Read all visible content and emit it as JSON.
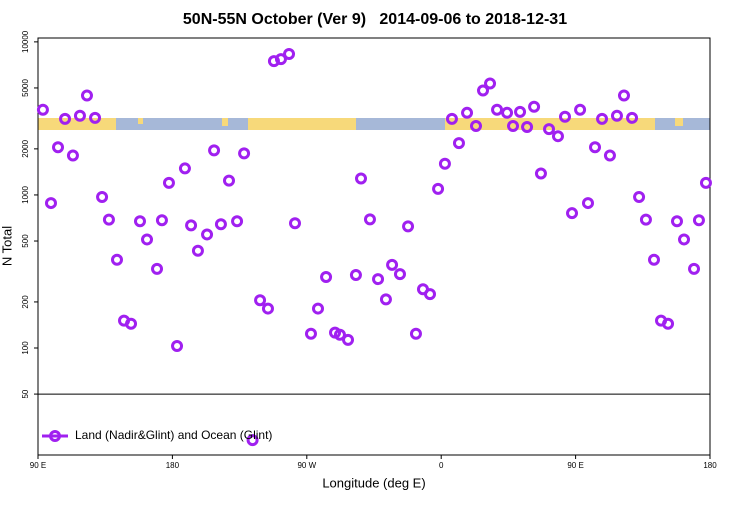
{
  "chart_data": {
    "type": "scatter",
    "title": "50N-55N October (Ver 9)   2014-09-06 to 2018-12-31",
    "x_label": "Longitude (deg E)",
    "y_label": "N Total",
    "log_y": true,
    "legend": "bottom-left",
    "xlim": [
      90,
      540
    ],
    "xticks": [
      {
        "value": 90,
        "label": "90 E"
      },
      180,
      {
        "value": 270,
        "label": "90 W"
      },
      {
        "value": 360,
        "label": "0"
      },
      {
        "value": 450,
        "label": "90 E"
      },
      {
        "value": 540,
        "label": "180"
      }
    ],
    "ylim": [
      20,
      10600
    ],
    "yticks": [
      50,
      100,
      200,
      500,
      1000,
      2000,
      5000,
      10000
    ],
    "series": [
      {
        "name": "Land (Nadir&Glint) and Ocean (Glint)",
        "color": "#a020f0",
        "x": [
          93.3,
          98.7,
          103.4,
          108.1,
          113.4,
          118.1,
          122.8,
          128.2,
          132.9,
          137.5,
          142.9,
          147.6,
          152.3,
          158.3,
          163.0,
          169.7,
          173.0,
          177.7,
          183.1,
          188.4,
          192.5,
          197.1,
          203.2,
          207.9,
          212.5,
          217.9,
          223.3,
          228.0,
          233.7,
          238.7,
          244.0,
          248.0,
          252.7,
          258.1,
          262.1,
          272.8,
          277.5,
          282.9,
          288.9,
          292.2,
          297.6,
          302.9,
          306.3,
          312.3,
          317.7,
          323.0,
          327.1,
          332.4,
          337.8,
          343.1,
          347.8,
          352.5,
          357.9,
          362.5,
          367.2,
          371.9,
          377.3,
          383.3,
          388.0,
          392.7,
          397.4,
          404.1,
          408.1,
          412.8,
          417.5,
          422.2,
          426.8,
          432.2,
          438.2,
          442.9,
          447.6,
          453.0,
          458.3,
          463.0,
          467.7,
          473.0,
          477.7,
          482.4,
          487.8,
          492.5,
          497.1,
          502.5,
          507.2,
          511.9,
          517.9,
          522.6,
          529.3,
          532.6,
          537.3
        ],
        "values": [
          3600,
          885,
          2050,
          3140,
          1810,
          3290,
          4460,
          3190,
          970,
          690,
          377,
          151,
          144,
          673,
          512,
          329,
          683,
          1200,
          103,
          1490,
          633,
          432,
          552,
          1955,
          643,
          1240,
          673,
          1870,
          25,
          205,
          181,
          7490,
          7710,
          8330,
          653,
          124,
          181,
          291,
          126,
          122,
          113,
          300,
          1280,
          693,
          282,
          208,
          349,
          304,
          623,
          124,
          242,
          225,
          1096,
          1600,
          3140,
          2180,
          3440,
          2820,
          4810,
          5350,
          3600,
          3440,
          2820,
          3490,
          2780,
          3770,
          1380,
          2690,
          2420,
          3240,
          760,
          3600,
          885,
          2050,
          3140,
          1810,
          3290,
          4460,
          3190,
          970,
          690,
          377,
          151,
          144,
          673,
          512,
          329,
          683,
          1200
        ]
      }
    ]
  }
}
